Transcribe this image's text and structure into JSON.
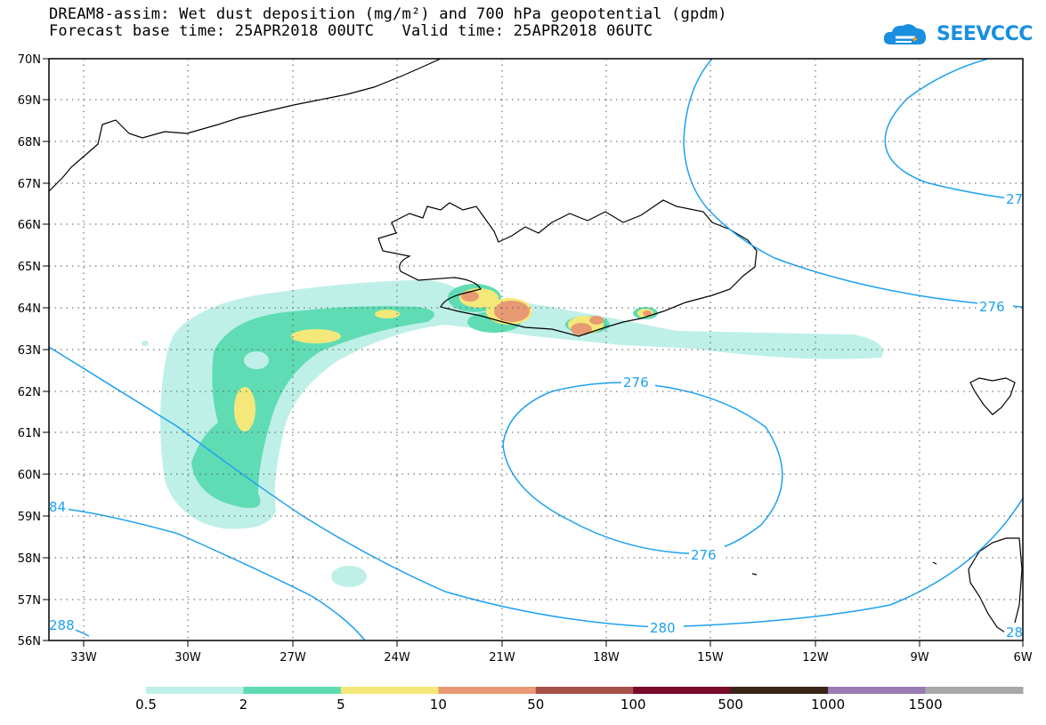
{
  "title": {
    "line1": "DREAM8-assim: Wet dust deposition (mg/m²) and 700 hPa geopotential (gpdm)",
    "line2": "Forecast base time: 25APR2018 00UTC   Valid time: 25APR2018 06UTC"
  },
  "logo": {
    "text": "SEEVCCC",
    "icon": "cloud-logo-icon",
    "color": "#1a8fe0"
  },
  "axes": {
    "lat_labels": [
      "70N",
      "69N",
      "68N",
      "67N",
      "66N",
      "65N",
      "64N",
      "63N",
      "62N",
      "61N",
      "60N",
      "59N",
      "58N",
      "57N",
      "56N"
    ],
    "lon_labels": [
      "33W",
      "30W",
      "27W",
      "24W",
      "21W",
      "18W",
      "15W",
      "12W",
      "9W",
      "6W"
    ]
  },
  "contours": {
    "color": "#1da1f2",
    "labels": [
      "27",
      "276",
      "276",
      "276",
      "280",
      "84",
      "288",
      "28"
    ]
  },
  "colorbar": {
    "labels": [
      "0.5",
      "2",
      "5",
      "10",
      "50",
      "100",
      "500",
      "1000",
      "1500"
    ],
    "colors": [
      "#bff0e8",
      "#5fdcb4",
      "#f5e87a",
      "#e89a72",
      "#a8524a",
      "#7a0a2a",
      "#3a2418",
      "#9a7ab2",
      "#a8a8a8"
    ]
  }
}
